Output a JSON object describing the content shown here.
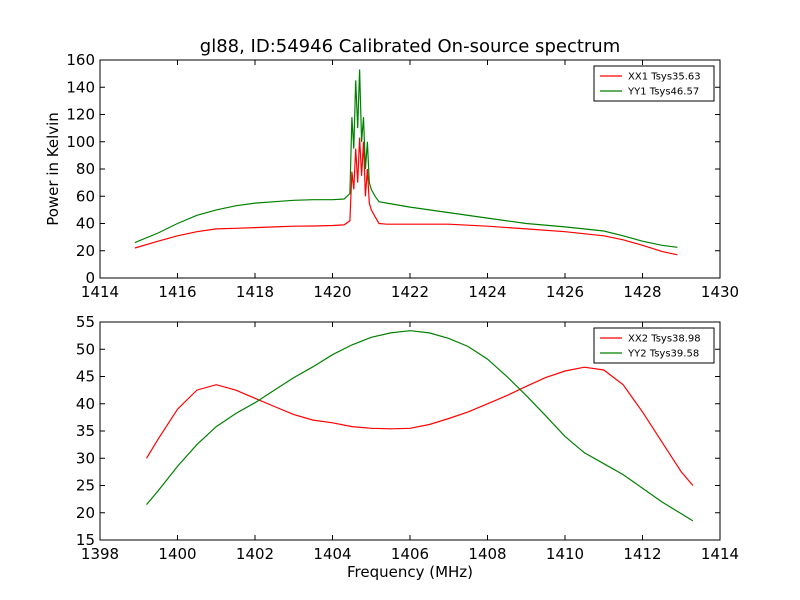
{
  "chart_data": [
    {
      "type": "line",
      "title": "gl88, ID:54946 Calibrated On-source spectrum",
      "xlabel": "",
      "ylabel": "Power in Kelvin",
      "xlim": [
        1414,
        1430
      ],
      "ylim": [
        0,
        160
      ],
      "xticks": [
        "1414",
        "1416",
        "1418",
        "1420",
        "1422",
        "1424",
        "1426",
        "1428",
        "1430"
      ],
      "yticks": [
        "0",
        "20",
        "40",
        "60",
        "80",
        "100",
        "120",
        "140",
        "160"
      ],
      "grid": false,
      "legend_position": "top-right",
      "series": [
        {
          "name": "XX1 Tsys35.63",
          "color": "#ff0000",
          "x": [
            1414.9,
            1415.5,
            1416.0,
            1416.5,
            1417.0,
            1417.5,
            1418.0,
            1418.5,
            1419.0,
            1419.5,
            1420.0,
            1420.3,
            1420.45,
            1420.5,
            1420.55,
            1420.6,
            1420.65,
            1420.7,
            1420.75,
            1420.8,
            1420.85,
            1420.9,
            1420.95,
            1421.0,
            1421.1,
            1421.2,
            1421.4,
            1422.0,
            1423.0,
            1424.0,
            1425.0,
            1426.0,
            1427.0,
            1427.5,
            1428.0,
            1428.5,
            1428.9
          ],
          "y": [
            22,
            27,
            31,
            34,
            36,
            36.5,
            37,
            37.5,
            38,
            38.2,
            38.5,
            39,
            42,
            78,
            65,
            95,
            70,
            103,
            75,
            100,
            60,
            80,
            55,
            50,
            45,
            40,
            39.5,
            39.5,
            39.5,
            38,
            36,
            34,
            31,
            28,
            24,
            19.5,
            17
          ]
        },
        {
          "name": "YY1 Tsys46.57",
          "color": "#008000",
          "x": [
            1414.9,
            1415.5,
            1416.0,
            1416.5,
            1417.0,
            1417.5,
            1418.0,
            1418.5,
            1419.0,
            1419.5,
            1420.0,
            1420.3,
            1420.45,
            1420.5,
            1420.55,
            1420.6,
            1420.65,
            1420.7,
            1420.75,
            1420.8,
            1420.85,
            1420.9,
            1420.95,
            1421.0,
            1421.1,
            1421.2,
            1421.4,
            1422.0,
            1423.0,
            1424.0,
            1425.0,
            1426.0,
            1427.0,
            1427.5,
            1428.0,
            1428.5,
            1428.9
          ],
          "y": [
            26,
            33,
            40,
            46,
            50,
            53,
            55,
            56,
            57,
            57.5,
            57.5,
            58,
            62,
            118,
            95,
            145,
            110,
            153,
            100,
            118,
            80,
            100,
            70,
            65,
            60,
            56,
            55,
            52,
            48,
            44,
            40,
            37.5,
            34.5,
            31,
            27,
            24,
            22.5
          ]
        }
      ]
    },
    {
      "type": "line",
      "title": "",
      "xlabel": "Frequency (MHz)",
      "ylabel": "",
      "xlim": [
        1398,
        1414
      ],
      "ylim": [
        15,
        55
      ],
      "xticks": [
        "1398",
        "1400",
        "1402",
        "1404",
        "1406",
        "1408",
        "1410",
        "1412",
        "1414"
      ],
      "yticks": [
        "15",
        "20",
        "25",
        "30",
        "35",
        "40",
        "45",
        "50",
        "55"
      ],
      "grid": false,
      "legend_position": "top-right",
      "series": [
        {
          "name": "XX2 Tsys38.98",
          "color": "#ff0000",
          "x": [
            1399.2,
            1399.5,
            1400.0,
            1400.5,
            1401.0,
            1401.5,
            1402.0,
            1402.5,
            1403.0,
            1403.5,
            1404.0,
            1404.5,
            1405.0,
            1405.5,
            1406.0,
            1406.5,
            1407.0,
            1407.5,
            1408.0,
            1408.5,
            1409.0,
            1409.5,
            1410.0,
            1410.5,
            1411.0,
            1411.5,
            1412.0,
            1412.5,
            1413.0,
            1413.3
          ],
          "y": [
            30,
            33.5,
            39,
            42.5,
            43.5,
            42.5,
            41,
            39.5,
            38,
            37,
            36.5,
            35.8,
            35.5,
            35.4,
            35.5,
            36.2,
            37.3,
            38.5,
            40,
            41.5,
            43.2,
            44.8,
            46,
            46.7,
            46.2,
            43.5,
            38.5,
            33,
            27.5,
            25
          ]
        },
        {
          "name": "YY2 Tsys39.58",
          "color": "#008000",
          "x": [
            1399.2,
            1399.5,
            1400.0,
            1400.5,
            1401.0,
            1401.5,
            1402.0,
            1402.5,
            1403.0,
            1403.5,
            1404.0,
            1404.5,
            1405.0,
            1405.5,
            1406.0,
            1406.5,
            1407.0,
            1407.5,
            1408.0,
            1408.5,
            1409.0,
            1409.5,
            1410.0,
            1410.5,
            1411.0,
            1411.5,
            1412.0,
            1412.5,
            1413.0,
            1413.3
          ],
          "y": [
            21.5,
            24,
            28.5,
            32.5,
            35.8,
            38.2,
            40.2,
            42.5,
            44.8,
            46.8,
            49,
            50.8,
            52.2,
            53,
            53.4,
            53,
            52,
            50.5,
            48.2,
            45,
            41.5,
            37.8,
            34,
            31,
            29,
            27,
            24.5,
            22,
            19.8,
            18.5
          ]
        }
      ]
    }
  ]
}
